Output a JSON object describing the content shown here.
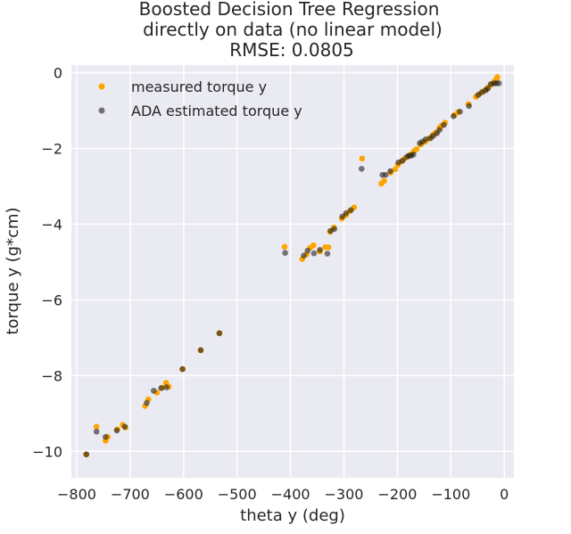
{
  "chart_data": {
    "type": "scatter",
    "title_lines": [
      "Boosted Decision Tree Regression",
      "directly on data (no linear model)",
      "RMSE: 0.0805"
    ],
    "xlabel": "theta y (deg)",
    "ylabel": "torque y (g*cm)",
    "xlim": [
      -810,
      18
    ],
    "ylim": [
      -10.7,
      0.2
    ],
    "xticks": [
      -800,
      -700,
      -600,
      -500,
      -400,
      -300,
      -200,
      -100,
      0
    ],
    "yticks": [
      -10,
      -8,
      -6,
      -4,
      -2,
      0
    ],
    "xtick_labels": [
      "−800",
      "−700",
      "−600",
      "−500",
      "−400",
      "−300",
      "−200",
      "−100",
      "0"
    ],
    "ytick_labels": [
      "−10",
      "−8",
      "−6",
      "−4",
      "−2",
      "0"
    ],
    "grid": true,
    "legend_position": "top-left",
    "colors": {
      "background": "#eaeaf2",
      "grid": "#ffffff",
      "measured": "#ffa500",
      "estimated": "#222222"
    },
    "series": [
      {
        "name": "measured torque y",
        "color": "#ffa500",
        "points": [
          [
            -782,
            -10.08
          ],
          [
            -763,
            -9.35
          ],
          [
            -746,
            -9.72
          ],
          [
            -742,
            -9.62
          ],
          [
            -724,
            -9.42
          ],
          [
            -714,
            -9.3
          ],
          [
            -709,
            -9.37
          ],
          [
            -672,
            -8.8
          ],
          [
            -666,
            -8.63
          ],
          [
            -650,
            -8.45
          ],
          [
            -640,
            -8.32
          ],
          [
            -633,
            -8.19
          ],
          [
            -628,
            -8.29
          ],
          [
            -602,
            -7.83
          ],
          [
            -568,
            -7.33
          ],
          [
            -533,
            -6.88
          ],
          [
            -411,
            -4.6
          ],
          [
            -378,
            -4.92
          ],
          [
            -370,
            -4.8
          ],
          [
            -363,
            -4.62
          ],
          [
            -357,
            -4.56
          ],
          [
            -345,
            -4.72
          ],
          [
            -335,
            -4.61
          ],
          [
            -329,
            -4.61
          ],
          [
            -326,
            -4.2
          ],
          [
            -319,
            -4.09
          ],
          [
            -304,
            -3.85
          ],
          [
            -296,
            -3.76
          ],
          [
            -289,
            -3.66
          ],
          [
            -281,
            -3.56
          ],
          [
            -266,
            -2.27
          ],
          [
            -230,
            -2.93
          ],
          [
            -225,
            -2.86
          ],
          [
            -213,
            -2.64
          ],
          [
            -204,
            -2.55
          ],
          [
            -199,
            -2.43
          ],
          [
            -192,
            -2.34
          ],
          [
            -186,
            -2.26
          ],
          [
            -180,
            -2.21
          ],
          [
            -175,
            -2.16
          ],
          [
            -169,
            -2.07
          ],
          [
            -164,
            -2.02
          ],
          [
            -156,
            -1.9
          ],
          [
            -148,
            -1.82
          ],
          [
            -141,
            -1.74
          ],
          [
            -134,
            -1.65
          ],
          [
            -128,
            -1.58
          ],
          [
            -121,
            -1.45
          ],
          [
            -117,
            -1.4
          ],
          [
            -111,
            -1.32
          ],
          [
            -93,
            -1.12
          ],
          [
            -86,
            -1.04
          ],
          [
            -67,
            -0.83
          ],
          [
            -53,
            -0.64
          ],
          [
            -47,
            -0.57
          ],
          [
            -40,
            -0.5
          ],
          [
            -34,
            -0.44
          ],
          [
            -30,
            -0.39
          ],
          [
            -25,
            -0.32
          ],
          [
            -19,
            -0.24
          ],
          [
            -15,
            -0.17
          ],
          [
            -13,
            -0.12
          ]
        ]
      },
      {
        "name": "ADA estimated torque y",
        "color": "#222222",
        "points": [
          [
            -782,
            -10.08
          ],
          [
            -763,
            -9.48
          ],
          [
            -746,
            -9.62
          ],
          [
            -725,
            -9.45
          ],
          [
            -710,
            -9.35
          ],
          [
            -669,
            -8.72
          ],
          [
            -656,
            -8.4
          ],
          [
            -642,
            -8.33
          ],
          [
            -632,
            -8.31
          ],
          [
            -602,
            -7.83
          ],
          [
            -568,
            -7.33
          ],
          [
            -533,
            -6.88
          ],
          [
            -410,
            -4.76
          ],
          [
            -375,
            -4.83
          ],
          [
            -368,
            -4.7
          ],
          [
            -356,
            -4.77
          ],
          [
            -345,
            -4.68
          ],
          [
            -331,
            -4.78
          ],
          [
            -325,
            -4.18
          ],
          [
            -318,
            -4.13
          ],
          [
            -303,
            -3.8
          ],
          [
            -296,
            -3.71
          ],
          [
            -287,
            -3.63
          ],
          [
            -267,
            -2.54
          ],
          [
            -228,
            -2.7
          ],
          [
            -222,
            -2.7
          ],
          [
            -213,
            -2.6
          ],
          [
            -198,
            -2.37
          ],
          [
            -190,
            -2.32
          ],
          [
            -182,
            -2.22
          ],
          [
            -178,
            -2.19
          ],
          [
            -174,
            -2.19
          ],
          [
            -170,
            -2.16
          ],
          [
            -158,
            -1.86
          ],
          [
            -153,
            -1.82
          ],
          [
            -147,
            -1.76
          ],
          [
            -138,
            -1.73
          ],
          [
            -133,
            -1.67
          ],
          [
            -126,
            -1.6
          ],
          [
            -121,
            -1.51
          ],
          [
            -113,
            -1.38
          ],
          [
            -95,
            -1.15
          ],
          [
            -83,
            -1.03
          ],
          [
            -66,
            -0.88
          ],
          [
            -49,
            -0.59
          ],
          [
            -42,
            -0.52
          ],
          [
            -35,
            -0.47
          ],
          [
            -31,
            -0.42
          ],
          [
            -25,
            -0.3
          ],
          [
            -19,
            -0.28
          ],
          [
            -15,
            -0.28
          ],
          [
            -10,
            -0.28
          ]
        ]
      }
    ]
  }
}
